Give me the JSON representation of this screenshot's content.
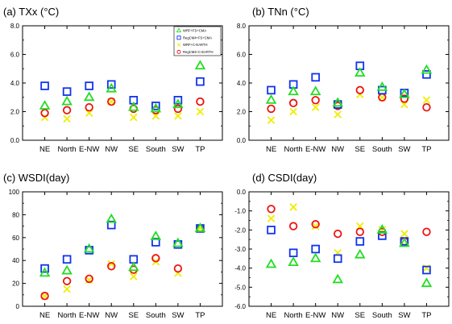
{
  "chart_data": [
    {
      "type": "scatter",
      "title": "(a) TXx (°C)",
      "categories": [
        "NE",
        "North",
        "E-NW",
        "NW",
        "SE",
        "South",
        "SW",
        "TP"
      ],
      "ylim": [
        0,
        8
      ],
      "yticks": [
        "0.0",
        "2.0",
        "4.0",
        "6.0",
        "8.0"
      ],
      "legend": "top-right",
      "series": [
        {
          "name": "WRF+FS+CMA",
          "values": [
            2.4,
            2.7,
            3.0,
            3.6,
            2.3,
            2.2,
            2.5,
            5.2
          ]
        },
        {
          "name": "RegCM4+FS+CMA",
          "values": [
            3.8,
            3.4,
            3.8,
            3.9,
            2.8,
            2.4,
            2.8,
            4.1
          ]
        },
        {
          "name": "WRF+C-EARTH",
          "values": [
            1.6,
            1.5,
            1.9,
            2.7,
            1.6,
            1.7,
            1.7,
            2.0
          ]
        },
        {
          "name": "RegCM4+C-EARTH",
          "values": [
            1.9,
            2.1,
            2.3,
            2.7,
            2.2,
            2.1,
            2.2,
            2.7
          ]
        }
      ]
    },
    {
      "type": "scatter",
      "title": "(b) TNn (°C)",
      "categories": [
        "NE",
        "North",
        "E-NW",
        "NW",
        "SE",
        "South",
        "SW",
        "TP"
      ],
      "ylim": [
        0,
        8
      ],
      "yticks": [
        "0.0",
        "2.0",
        "4.0",
        "6.0",
        "8.0"
      ],
      "series": [
        {
          "name": "WRF+FS+CMA",
          "values": [
            2.8,
            3.4,
            3.4,
            2.6,
            4.7,
            3.7,
            3.2,
            4.9
          ]
        },
        {
          "name": "RegCM4+FS+CMA",
          "values": [
            3.5,
            3.9,
            4.4,
            2.5,
            5.2,
            3.5,
            3.3,
            4.6
          ]
        },
        {
          "name": "WRF+C-EARTH",
          "values": [
            1.4,
            2.0,
            2.3,
            1.8,
            3.2,
            3.0,
            2.5,
            2.8
          ]
        },
        {
          "name": "RegCM4+C-EARTH",
          "values": [
            2.2,
            2.6,
            2.8,
            2.4,
            3.5,
            3.0,
            2.9,
            2.3
          ]
        }
      ]
    },
    {
      "type": "scatter",
      "title": "(c) WSDI(day)",
      "categories": [
        "NE",
        "North",
        "E-NW",
        "NW",
        "SE",
        "South",
        "SW",
        "TP"
      ],
      "ylim": [
        0,
        100
      ],
      "yticks": [
        "0",
        "20",
        "40",
        "60",
        "80",
        "100"
      ],
      "series": [
        {
          "name": "WRF+FS+CMA",
          "values": [
            29,
            31,
            50,
            76,
            34,
            61,
            55,
            68
          ]
        },
        {
          "name": "RegCM4+FS+CMA",
          "values": [
            33,
            41,
            49,
            71,
            41,
            56,
            54,
            68
          ]
        },
        {
          "name": "WRF+C-EARTH",
          "values": [
            9,
            15,
            23,
            37,
            26,
            39,
            29,
            68
          ]
        },
        {
          "name": "RegCM4+C-EARTH",
          "values": [
            9,
            22,
            24,
            35,
            32,
            42,
            33,
            68
          ]
        }
      ]
    },
    {
      "type": "scatter",
      "title": "(d) CSDI(day)",
      "categories": [
        "NE",
        "North",
        "E-NW",
        "NW",
        "SE",
        "South",
        "SW",
        "TP"
      ],
      "ylim": [
        -6,
        0
      ],
      "yticks": [
        "-6.0",
        "-5.0",
        "-4.0",
        "-3.0",
        "-2.0",
        "-1.0",
        "0.0"
      ],
      "series": [
        {
          "name": "WRF+FS+CMA",
          "values": [
            -3.8,
            -3.7,
            -3.5,
            -4.6,
            -3.3,
            -2.0,
            -2.7,
            -4.8
          ]
        },
        {
          "name": "RegCM4+FS+CMA",
          "values": [
            -2.0,
            -3.2,
            -3.0,
            -3.5,
            -2.6,
            -2.3,
            -2.6,
            -4.1
          ]
        },
        {
          "name": "WRF+C-EARTH",
          "values": [
            -1.4,
            -0.8,
            -1.8,
            -3.2,
            -1.8,
            -2.0,
            -2.2,
            -4.0
          ]
        },
        {
          "name": "RegCM4+C-EARTH",
          "values": [
            -0.9,
            -1.8,
            -1.7,
            -2.2,
            -2.1,
            -2.1,
            -2.6,
            -2.1
          ]
        }
      ]
    }
  ],
  "style": {
    "colors": {
      "WRF+FS+CMA": "#22dd22",
      "RegCM4+FS+CMA": "#1133ee",
      "WRF+C-EARTH": "#eeee00",
      "RegCM4+C-EARTH": "#ee1111"
    },
    "markers": {
      "WRF+FS+CMA": "triangle",
      "RegCM4+FS+CMA": "square",
      "WRF+C-EARTH": "cross",
      "RegCM4+C-EARTH": "circle"
    }
  }
}
